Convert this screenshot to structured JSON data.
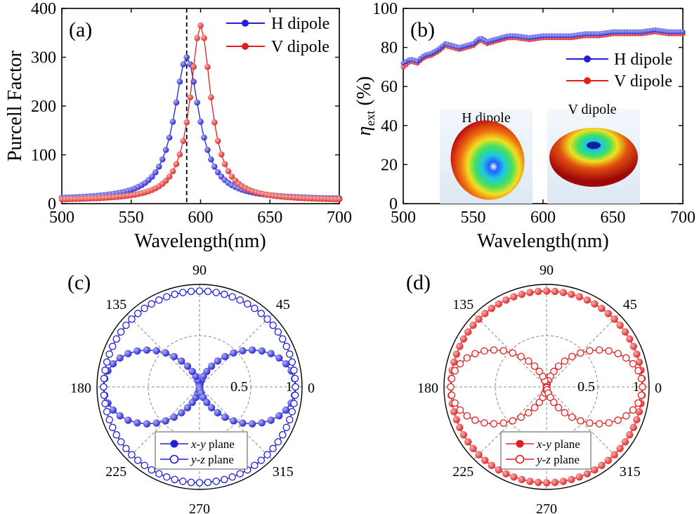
{
  "chart_data": [
    {
      "id": "a",
      "panel_label": "(a)",
      "type": "line",
      "xlabel": "Wavelength(nm)",
      "ylabel": "Purcell Factor",
      "xlim": [
        500,
        700
      ],
      "ylim": [
        0,
        400
      ],
      "xticks": [
        500,
        550,
        600,
        650,
        700
      ],
      "yticks": [
        0,
        100,
        200,
        300,
        400
      ],
      "vline_x": 590,
      "legend_position": "top-right",
      "series": [
        {
          "name": "H dipole",
          "color": "#1f1fd6",
          "peak_x": 590,
          "peak_y": 300,
          "gamma": 22,
          "base": 8
        },
        {
          "name": "V dipole",
          "color": "#e02020",
          "peak_x": 600,
          "peak_y": 365,
          "gamma": 18,
          "base": 6
        }
      ]
    },
    {
      "id": "b",
      "panel_label": "(b)",
      "type": "line",
      "xlabel": "Wavelength(nm)",
      "ylabel_main": "η",
      "ylabel_sub": "ext",
      "ylabel_unit": " (%)",
      "xlim": [
        500,
        700
      ],
      "ylim": [
        0,
        100
      ],
      "xticks": [
        500,
        550,
        600,
        650,
        700
      ],
      "yticks": [
        0,
        20,
        40,
        60,
        80,
        100
      ],
      "legend_position": "right",
      "series": [
        {
          "name": "H dipole",
          "color": "#1f1fd6",
          "x": [
            500,
            505,
            510,
            515,
            520,
            525,
            530,
            535,
            540,
            545,
            550,
            555,
            560,
            565,
            570,
            575,
            580,
            590,
            600,
            610,
            620,
            630,
            640,
            650,
            660,
            670,
            680,
            690,
            700
          ],
          "y": [
            72,
            74,
            73,
            76,
            77,
            79,
            82,
            81,
            80,
            81,
            82,
            85,
            83,
            84,
            85,
            86,
            86,
            85,
            86,
            86,
            86,
            87,
            87,
            88,
            88,
            88,
            89,
            88,
            88
          ]
        },
        {
          "name": "V dipole",
          "color": "#e02020",
          "x": [
            500,
            505,
            510,
            515,
            520,
            525,
            530,
            535,
            540,
            545,
            550,
            555,
            560,
            565,
            570,
            575,
            580,
            590,
            600,
            610,
            620,
            630,
            640,
            650,
            660,
            670,
            680,
            690,
            700
          ],
          "y": [
            70,
            73,
            72,
            75,
            76,
            78,
            81,
            80,
            79,
            80,
            81,
            84,
            82,
            83,
            84,
            85,
            85,
            84,
            85,
            85,
            85,
            86,
            86,
            87,
            87,
            87,
            88,
            87,
            87
          ]
        }
      ],
      "insets": [
        {
          "title": "H dipole",
          "title_color": "#2020c0"
        },
        {
          "title": "V dipole",
          "title_color": "#d02020"
        }
      ]
    },
    {
      "id": "c",
      "panel_label": "(c)",
      "type": "polar",
      "angle_labels": [
        "0",
        "45",
        "90",
        "135",
        "180",
        "225",
        "270",
        "315"
      ],
      "radial_labels": [
        "0.5",
        "1"
      ],
      "rlim": [
        0,
        1
      ],
      "color": "#1f1fd6",
      "legend_position": "bottom-center",
      "series": [
        {
          "name": "x-y plane",
          "name_main": "x-y",
          "name_rest": " plane",
          "pattern": "cos2",
          "marker": "filled"
        },
        {
          "name": "y-z plane",
          "name_main": "y-z",
          "name_rest": " plane",
          "pattern": "circle",
          "marker": "open"
        }
      ]
    },
    {
      "id": "d",
      "panel_label": "(d)",
      "type": "polar",
      "angle_labels": [
        "0",
        "45",
        "90",
        "135",
        "180",
        "225",
        "270",
        "315"
      ],
      "radial_labels": [
        "0.5",
        "1"
      ],
      "rlim": [
        0,
        1
      ],
      "color": "#e02020",
      "legend_position": "bottom-center",
      "series": [
        {
          "name": "x-y plane",
          "name_main": "x-y",
          "name_rest": " plane",
          "pattern": "circle",
          "marker": "filled"
        },
        {
          "name": "y-z plane",
          "name_main": "y-z",
          "name_rest": " plane",
          "pattern": "cos2",
          "marker": "open"
        }
      ]
    }
  ]
}
